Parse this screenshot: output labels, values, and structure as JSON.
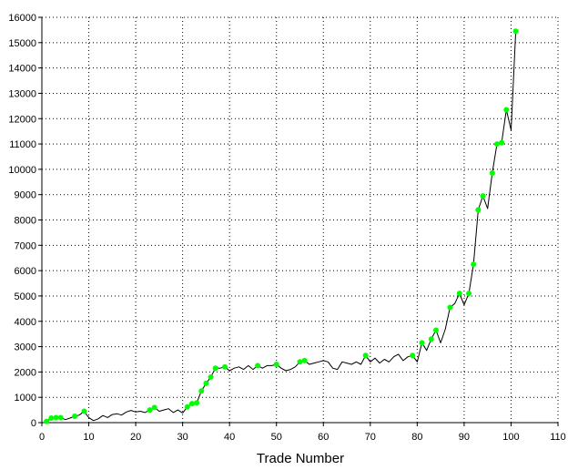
{
  "chart_data": {
    "type": "line",
    "title": "",
    "xlabel": "Trade Number",
    "ylabel": "",
    "xlim": [
      0,
      110
    ],
    "ylim": [
      0,
      16000
    ],
    "x_ticks": [
      0,
      10,
      20,
      30,
      40,
      50,
      60,
      70,
      80,
      90,
      100,
      110
    ],
    "y_ticks": [
      0,
      1000,
      2000,
      3000,
      4000,
      5000,
      6000,
      7000,
      8000,
      9000,
      10000,
      11000,
      12000,
      13000,
      14000,
      15000,
      16000
    ],
    "grid": true,
    "colors": {
      "line": "#000000",
      "marker": "#00ff00",
      "axis": "#000000",
      "grid": "#000000"
    },
    "series": [
      {
        "values": [
          [
            1,
            50
          ],
          [
            2,
            180
          ],
          [
            3,
            200
          ],
          [
            4,
            200
          ],
          [
            5,
            120
          ],
          [
            6,
            180
          ],
          [
            7,
            250
          ],
          [
            8,
            300
          ],
          [
            9,
            450
          ],
          [
            10,
            200
          ],
          [
            11,
            80
          ],
          [
            12,
            150
          ],
          [
            13,
            280
          ],
          [
            14,
            200
          ],
          [
            15,
            320
          ],
          [
            16,
            350
          ],
          [
            17,
            300
          ],
          [
            18,
            420
          ],
          [
            19,
            480
          ],
          [
            20,
            420
          ],
          [
            21,
            450
          ],
          [
            22,
            400
          ],
          [
            23,
            500
          ],
          [
            24,
            600
          ],
          [
            25,
            450
          ],
          [
            26,
            500
          ],
          [
            27,
            550
          ],
          [
            28,
            400
          ],
          [
            29,
            500
          ],
          [
            30,
            380
          ],
          [
            31,
            620
          ],
          [
            32,
            750
          ],
          [
            33,
            780
          ],
          [
            34,
            1250
          ],
          [
            35,
            1550
          ],
          [
            36,
            1800
          ],
          [
            37,
            2150
          ],
          [
            38,
            2150
          ],
          [
            39,
            2200
          ],
          [
            40,
            2050
          ],
          [
            41,
            2150
          ],
          [
            42,
            2200
          ],
          [
            43,
            2100
          ],
          [
            44,
            2250
          ],
          [
            45,
            2100
          ],
          [
            46,
            2250
          ],
          [
            47,
            2150
          ],
          [
            48,
            2250
          ],
          [
            49,
            2250
          ],
          [
            50,
            2300
          ],
          [
            51,
            2150
          ],
          [
            52,
            2050
          ],
          [
            53,
            2100
          ],
          [
            54,
            2200
          ],
          [
            55,
            2400
          ],
          [
            56,
            2450
          ],
          [
            57,
            2300
          ],
          [
            58,
            2350
          ],
          [
            59,
            2400
          ],
          [
            60,
            2450
          ],
          [
            61,
            2400
          ],
          [
            62,
            2150
          ],
          [
            63,
            2100
          ],
          [
            64,
            2400
          ],
          [
            65,
            2350
          ],
          [
            66,
            2300
          ],
          [
            67,
            2400
          ],
          [
            68,
            2300
          ],
          [
            69,
            2650
          ],
          [
            70,
            2400
          ],
          [
            71,
            2550
          ],
          [
            72,
            2350
          ],
          [
            73,
            2500
          ],
          [
            74,
            2400
          ],
          [
            75,
            2600
          ],
          [
            76,
            2700
          ],
          [
            77,
            2450
          ],
          [
            78,
            2600
          ],
          [
            79,
            2650
          ],
          [
            80,
            2400
          ],
          [
            81,
            3150
          ],
          [
            82,
            2850
          ],
          [
            83,
            3300
          ],
          [
            84,
            3650
          ],
          [
            85,
            3150
          ],
          [
            86,
            3700
          ],
          [
            87,
            4550
          ],
          [
            88,
            4700
          ],
          [
            89,
            5100
          ],
          [
            90,
            4650
          ],
          [
            91,
            5100
          ],
          [
            92,
            6250
          ],
          [
            93,
            8400
          ],
          [
            94,
            8950
          ],
          [
            95,
            8450
          ],
          [
            96,
            9850
          ],
          [
            97,
            11000
          ],
          [
            98,
            11050
          ],
          [
            99,
            12350
          ],
          [
            100,
            11550
          ],
          [
            101,
            15450
          ]
        ],
        "markers": [
          [
            1,
            50
          ],
          [
            2,
            180
          ],
          [
            3,
            200
          ],
          [
            4,
            200
          ],
          [
            7,
            250
          ],
          [
            9,
            450
          ],
          [
            23,
            500
          ],
          [
            24,
            600
          ],
          [
            31,
            620
          ],
          [
            32,
            750
          ],
          [
            33,
            780
          ],
          [
            34,
            1250
          ],
          [
            35,
            1550
          ],
          [
            36,
            1800
          ],
          [
            37,
            2150
          ],
          [
            39,
            2200
          ],
          [
            46,
            2250
          ],
          [
            50,
            2300
          ],
          [
            55,
            2400
          ],
          [
            56,
            2450
          ],
          [
            69,
            2650
          ],
          [
            79,
            2650
          ],
          [
            81,
            3150
          ],
          [
            83,
            3300
          ],
          [
            84,
            3650
          ],
          [
            87,
            4550
          ],
          [
            89,
            5100
          ],
          [
            91,
            5100
          ],
          [
            92,
            6250
          ],
          [
            93,
            8400
          ],
          [
            94,
            8950
          ],
          [
            96,
            9850
          ],
          [
            97,
            11000
          ],
          [
            98,
            11050
          ],
          [
            99,
            12350
          ],
          [
            101,
            15450
          ]
        ]
      }
    ]
  }
}
